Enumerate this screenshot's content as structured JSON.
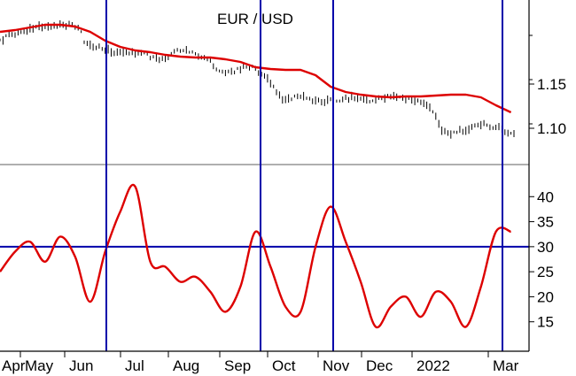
{
  "chart_data": [
    {
      "type": "candlestick",
      "title": "EUR / USD",
      "y_ticks": [
        "1.15",
        "1.10"
      ],
      "y_tick_values": [
        1.15,
        1.1
      ],
      "ylim": [
        1.065,
        1.235
      ],
      "x_labels": [
        "Apr",
        "May",
        "Jun",
        "Jul",
        "Aug",
        "Sep",
        "Oct",
        "Nov",
        "Dec",
        "2022",
        "Mar"
      ],
      "grid": false,
      "colors": {
        "price": "#000000",
        "moving_average": "#dd0000"
      },
      "price_series": {
        "name": "",
        "x": [
          0,
          2,
          4,
          6,
          8,
          10,
          12,
          14,
          16,
          18,
          20,
          22,
          24,
          26,
          28,
          30,
          32,
          34,
          36,
          38,
          40,
          42,
          44,
          46,
          48,
          50,
          52,
          54,
          56,
          58,
          60,
          62,
          64,
          66,
          68,
          70,
          72,
          74,
          76,
          78,
          80,
          82,
          84,
          86,
          88,
          90,
          92,
          94,
          96,
          98,
          100,
          102,
          104,
          106,
          108,
          110,
          112,
          114,
          116,
          118,
          120,
          122,
          124,
          126,
          128,
          130,
          132,
          134,
          136,
          138,
          140,
          142,
          144,
          146,
          148,
          150,
          152,
          154,
          156,
          158,
          160,
          162,
          164,
          166,
          168,
          170,
          172,
          174,
          176,
          178,
          180,
          182,
          184,
          186,
          188,
          190,
          192,
          194,
          196,
          198,
          200,
          202,
          204,
          206,
          208,
          210,
          212,
          214,
          216,
          218,
          220,
          222,
          224,
          226,
          228,
          230,
          232,
          234,
          236,
          238,
          240,
          242,
          244,
          246,
          248,
          250,
          252,
          254,
          256,
          258,
          260,
          262,
          264,
          266,
          268,
          270,
          272,
          274,
          276,
          278,
          280,
          282,
          284,
          286,
          288,
          290,
          292,
          294,
          296,
          298,
          300,
          302,
          304,
          306,
          308,
          310,
          312,
          314,
          316,
          318,
          320,
          322,
          324,
          326,
          328,
          330,
          332,
          334,
          336,
          338,
          340,
          342
        ],
        "values": [
          1.199,
          1.201,
          1.203,
          1.205,
          1.206,
          1.207,
          1.208,
          1.209,
          1.21,
          1.211,
          1.212,
          1.213,
          1.213,
          1.214,
          1.214,
          1.215,
          1.215,
          1.216,
          1.216,
          1.217,
          1.217,
          1.218,
          1.217,
          1.217,
          1.216,
          1.215,
          1.213,
          1.208,
          1.199,
          1.195,
          1.194,
          1.193,
          1.192,
          1.191,
          1.19,
          1.189,
          1.188,
          1.187,
          1.186,
          1.185,
          1.186,
          1.187,
          1.187,
          1.186,
          1.185,
          1.185,
          1.186,
          1.187,
          1.186,
          1.184,
          1.181,
          1.179,
          1.178,
          1.178,
          1.179,
          1.181,
          1.182,
          1.184,
          1.186,
          1.188,
          1.189,
          1.188,
          1.187,
          1.186,
          1.185,
          1.184,
          1.182,
          1.181,
          1.18,
          1.179,
          1.175,
          1.171,
          1.168,
          1.166,
          1.164,
          1.163,
          1.163,
          1.164,
          1.165,
          1.167,
          1.168,
          1.17,
          1.17,
          1.169,
          1.168,
          1.166,
          1.164,
          1.162,
          1.159,
          1.155,
          1.151,
          1.146,
          1.141,
          1.136,
          1.134,
          1.133,
          1.133,
          1.134,
          1.135,
          1.136,
          1.136,
          1.135,
          1.134,
          1.133,
          1.132,
          1.132,
          1.131,
          1.131,
          1.131,
          1.132,
          1.132,
          1.132,
          1.132,
          1.132,
          1.133,
          1.134,
          1.134,
          1.135,
          1.135,
          1.134,
          1.134,
          1.133,
          1.132,
          1.131,
          1.131,
          1.132,
          1.133,
          1.134,
          1.135,
          1.136,
          1.137,
          1.137,
          1.136,
          1.135,
          1.134,
          1.133,
          1.133,
          1.132,
          1.131,
          1.131,
          1.13,
          1.129,
          1.126,
          1.122,
          1.118,
          1.113,
          1.106,
          1.099,
          1.097,
          1.095,
          1.094,
          1.095,
          1.096,
          1.097,
          1.098,
          1.099,
          1.1,
          1.101,
          1.102,
          1.103,
          1.104,
          1.104,
          1.104,
          1.103,
          1.102,
          1.101,
          1.1,
          1.098,
          1.096,
          1.095,
          1.094,
          1.093
        ]
      },
      "moving_average": {
        "name": "",
        "x": [
          0,
          10,
          20,
          30,
          40,
          50,
          60,
          70,
          80,
          90,
          100,
          110,
          120,
          130,
          140,
          150,
          160,
          170,
          180,
          190,
          200,
          210,
          220,
          230,
          240,
          250,
          260,
          270,
          280,
          290,
          300,
          310,
          320,
          330,
          340
        ],
        "values": [
          1.209,
          1.211,
          1.214,
          1.217,
          1.217,
          1.215,
          1.209,
          1.199,
          1.192,
          1.188,
          1.186,
          1.183,
          1.181,
          1.18,
          1.18,
          1.178,
          1.175,
          1.169,
          1.167,
          1.166,
          1.166,
          1.16,
          1.147,
          1.141,
          1.138,
          1.136,
          1.135,
          1.136,
          1.136,
          1.137,
          1.138,
          1.138,
          1.135,
          1.126,
          1.118
        ]
      }
    },
    {
      "type": "line",
      "title": "",
      "y_ticks": [
        "40",
        "35",
        "30",
        "25",
        "20",
        "15"
      ],
      "y_tick_values": [
        40,
        35,
        30,
        25,
        20,
        15
      ],
      "ylim": [
        10,
        45
      ],
      "reference_line": 30,
      "x_labels": [
        "Apr",
        "May",
        "Jun",
        "Jul",
        "Aug",
        "Sep",
        "Oct",
        "Nov",
        "Dec",
        "2022",
        "Mar"
      ],
      "grid": false,
      "colors": {
        "line": "#dd0000",
        "reference": "#0000aa"
      },
      "series": {
        "name": "",
        "x": [
          0,
          10,
          20,
          30,
          40,
          50,
          60,
          70,
          80,
          90,
          100,
          110,
          120,
          130,
          140,
          150,
          160,
          170,
          180,
          190,
          200,
          210,
          220,
          230,
          240,
          250,
          260,
          270,
          280,
          290,
          300,
          310,
          320,
          330,
          340
        ],
        "values": [
          25,
          29,
          31,
          27,
          32,
          28,
          19,
          29,
          37,
          42,
          27,
          26,
          23,
          24,
          21,
          17,
          22,
          33,
          26,
          18,
          17,
          30,
          38,
          31,
          23,
          14,
          18,
          20,
          16,
          21,
          19,
          14,
          22,
          33,
          33
        ]
      }
    }
  ]
}
